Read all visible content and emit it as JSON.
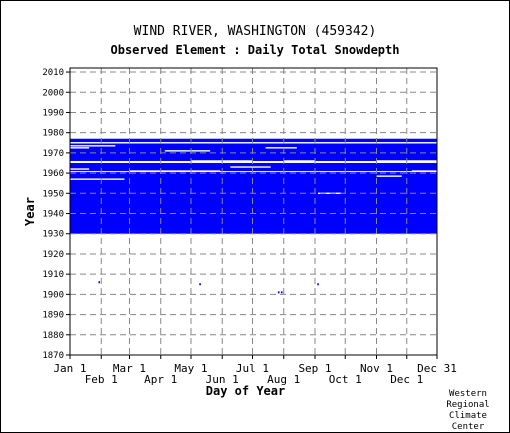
{
  "header": {
    "title": "WIND RIVER, WASHINGTON   (459342)",
    "subtitle": "Observed Element : Daily Total Snowdepth"
  },
  "credit": [
    "Western",
    "Regional",
    "Climate",
    "Center"
  ],
  "colors": {
    "data": "#0000ff",
    "grid": "#888888",
    "axis": "#000000",
    "background": "#ffffff"
  },
  "chart_data": {
    "type": "heatmap",
    "title": "Observed Element : Daily Total Snowdepth",
    "xlabel": "Day of Year",
    "ylabel": "Year",
    "xlim": [
      1,
      365
    ],
    "ylim": [
      1870,
      2012
    ],
    "x_ticks": [
      {
        "label": "Jan 1",
        "day": 1,
        "row": 0
      },
      {
        "label": "Feb 1",
        "day": 32,
        "row": 1
      },
      {
        "label": "Mar 1",
        "day": 60,
        "row": 0
      },
      {
        "label": "Apr 1",
        "day": 91,
        "row": 1
      },
      {
        "label": "May 1",
        "day": 121,
        "row": 0
      },
      {
        "label": "Jun 1",
        "day": 152,
        "row": 1
      },
      {
        "label": "Jul 1",
        "day": 182,
        "row": 0
      },
      {
        "label": "Aug 1",
        "day": 213,
        "row": 1
      },
      {
        "label": "Sep 1",
        "day": 244,
        "row": 0
      },
      {
        "label": "Oct 1",
        "day": 274,
        "row": 1
      },
      {
        "label": "Nov 1",
        "day": 305,
        "row": 0
      },
      {
        "label": "Dec 1",
        "day": 335,
        "row": 1
      },
      {
        "label": "Dec 31",
        "day": 365,
        "row": 0
      }
    ],
    "y_ticks": [
      1870,
      1880,
      1890,
      1900,
      1910,
      1920,
      1930,
      1940,
      1950,
      1960,
      1970,
      1980,
      1990,
      2000,
      2010
    ],
    "grid": true,
    "coverage": [
      {
        "start_year": 1930,
        "end_year": 1960.5,
        "start_day": 1,
        "end_day": 365
      },
      {
        "start_year": 1961,
        "end_year": 1965,
        "start_day": 1,
        "end_day": 365
      },
      {
        "start_year": 1966,
        "end_year": 1977,
        "start_day": 1,
        "end_day": 365
      }
    ],
    "gaps": [
      {
        "year": 1975,
        "start_day": 1,
        "end_day": 365
      },
      {
        "year": 1973.5,
        "start_day": 1,
        "end_day": 46
      },
      {
        "year": 1972.5,
        "start_day": 1,
        "end_day": 20
      },
      {
        "year": 1971,
        "start_day": 95,
        "end_day": 140
      },
      {
        "year": 1972.5,
        "start_day": 195,
        "end_day": 226
      },
      {
        "year": 1966,
        "start_day": 121,
        "end_day": 182
      },
      {
        "year": 1966,
        "start_day": 213,
        "end_day": 244
      },
      {
        "year": 1966,
        "start_day": 305,
        "end_day": 365
      },
      {
        "year": 1962,
        "start_day": 1,
        "end_day": 20
      },
      {
        "year": 1961,
        "start_day": 60,
        "end_day": 150
      },
      {
        "year": 1961,
        "start_day": 340,
        "end_day": 365
      },
      {
        "year": 1958.5,
        "start_day": 305,
        "end_day": 330
      },
      {
        "year": 1957,
        "start_day": 1,
        "end_day": 55
      },
      {
        "year": 1950,
        "start_day": 247,
        "end_day": 270
      },
      {
        "year": 1963,
        "start_day": 160,
        "end_day": 200
      }
    ],
    "isolated_points": [
      {
        "year": 1906,
        "day": 30
      },
      {
        "year": 1905,
        "day": 130
      },
      {
        "year": 1901,
        "day": 208
      },
      {
        "year": 1901,
        "day": 211
      },
      {
        "year": 1905,
        "day": 247
      },
      {
        "year": 1947,
        "day": 150
      },
      {
        "year": 1933,
        "day": 127
      },
      {
        "year": 1934,
        "day": 247
      }
    ]
  }
}
